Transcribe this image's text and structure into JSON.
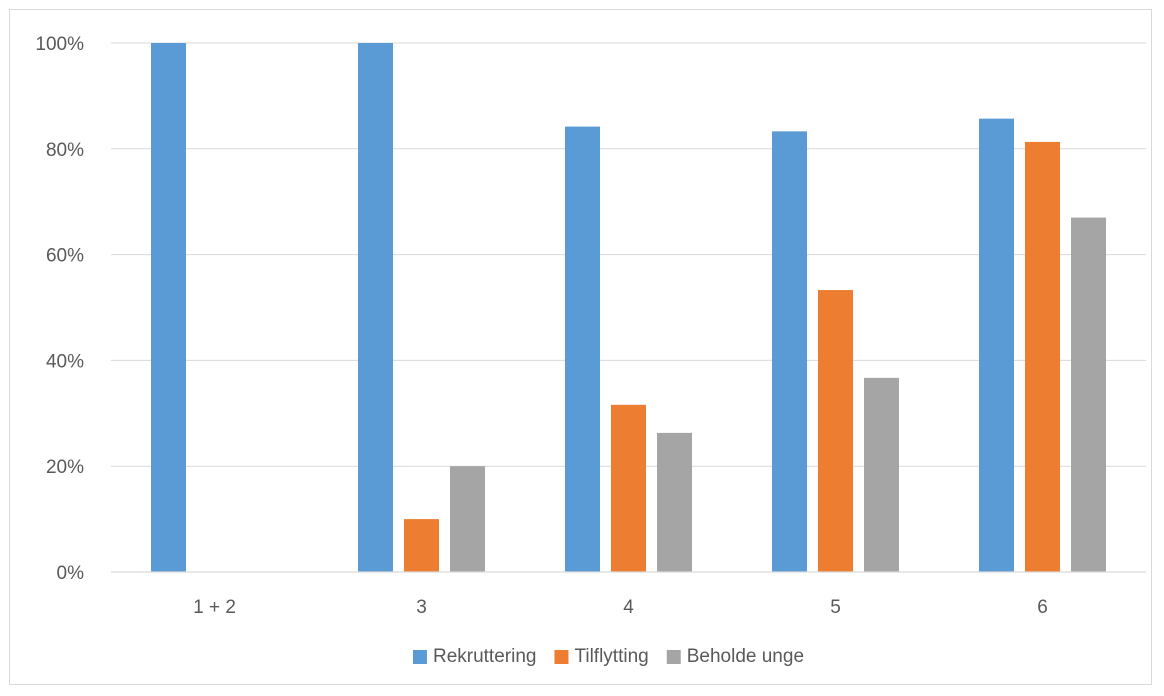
{
  "chart_data": {
    "type": "bar",
    "title": "",
    "xlabel": "",
    "ylabel": "",
    "categories": [
      "1 + 2",
      "3",
      "4",
      "5",
      "6"
    ],
    "series": [
      {
        "name": "Rekruttering",
        "color": "#5b9bd5",
        "values": [
          100,
          100,
          84.2,
          83.3,
          85.7
        ]
      },
      {
        "name": "Tilflytting",
        "color": "#ed7d31",
        "values": [
          0,
          10,
          31.6,
          53.3,
          81.3
        ]
      },
      {
        "name": "Beholde unge",
        "color": "#a5a5a5",
        "values": [
          0,
          20,
          26.3,
          36.7,
          67
        ]
      }
    ],
    "ylim": [
      0,
      100
    ],
    "yticks": [
      0,
      20,
      40,
      60,
      80,
      100
    ],
    "ytick_format": "%",
    "grid": true,
    "legend_position": "bottom"
  }
}
